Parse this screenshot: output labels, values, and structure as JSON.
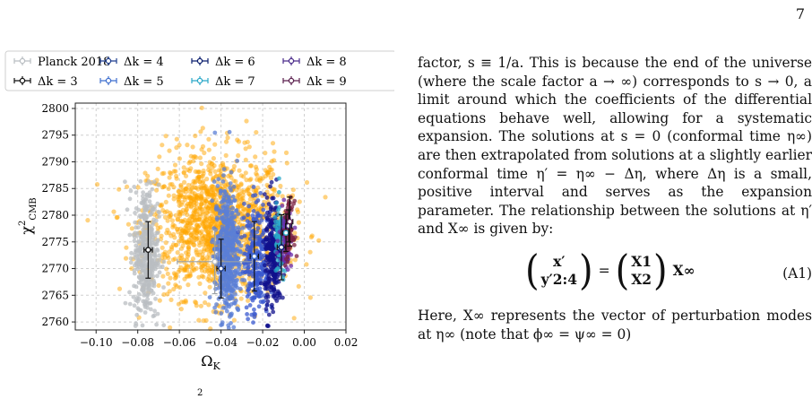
{
  "page_number": "7",
  "figure": {
    "legend": [
      {
        "label": "Planck 2018",
        "color": "#b9bec2"
      },
      {
        "label": "Δk = 3",
        "color": "#111111"
      },
      {
        "label": "Δk = 4",
        "color": "#1f3f8f"
      },
      {
        "label": "Δk = 5",
        "color": "#3f6fcf"
      },
      {
        "label": "Δk = 6",
        "color": "#0b1e6e"
      },
      {
        "label": "Δk = 7",
        "color": "#2aa8c8"
      },
      {
        "label": "Δk = 8",
        "color": "#4a2a8a"
      },
      {
        "label": "Δk = 9",
        "color": "#5a1f4e"
      }
    ],
    "xlabel": "Ω_K",
    "ylabel": "χ²_CMB",
    "xticks": [
      "−0.10",
      "−0.08",
      "−0.06",
      "−0.04",
      "−0.02",
      "0.00",
      "0.02"
    ],
    "yticks": [
      "2760",
      "2765",
      "2770",
      "2775",
      "2780",
      "2785",
      "2790",
      "2795",
      "2800"
    ],
    "caption_fragment": "2"
  },
  "chart_data": {
    "type": "scatter",
    "xlabel": "Ω_K",
    "ylabel": "χ²_CMB",
    "xlim": [
      -0.11,
      0.02
    ],
    "ylim": [
      2758.5,
      2801
    ],
    "grid": true,
    "legend_position": "top (above plot, two rows)",
    "series": [
      {
        "name": "Planck 2018",
        "color": "#ffa500",
        "x_center": -0.042,
        "x_spread": 0.03,
        "y_center": 2778,
        "y_spread": 9
      },
      {
        "name": "Δk = 3",
        "color": "#b9bec2",
        "x_center": -0.076,
        "x_spread": 0.003,
        "y_center": 2773,
        "y_spread": 7
      },
      {
        "name": "Δk = 4",
        "color": "#5b7fd6",
        "x_center": -0.037,
        "x_spread": 0.003,
        "y_center": 2773,
        "y_spread": 7
      },
      {
        "name": "Δk = 5",
        "color": "#3a5ad0",
        "x_center": -0.023,
        "x_spread": 0.003,
        "y_center": 2772,
        "y_spread": 6
      },
      {
        "name": "Δk = 6",
        "color": "#10108c",
        "x_center": -0.015,
        "x_spread": 0.002,
        "y_center": 2772,
        "y_spread": 6
      },
      {
        "name": "Δk = 7",
        "color": "#2aa8c8",
        "x_center": -0.0115,
        "x_spread": 0.0015,
        "y_center": 2775,
        "y_spread": 4
      },
      {
        "name": "Δk = 8",
        "color": "#6a2aa8",
        "x_center": -0.009,
        "x_spread": 0.0015,
        "y_center": 2776,
        "y_spread": 3
      },
      {
        "name": "Δk = 9",
        "color": "#7a2040",
        "x_center": -0.0075,
        "x_spread": 0.0012,
        "y_center": 2777,
        "y_spread": 3
      }
    ],
    "error_points": [
      {
        "name": "Planck 2018",
        "x": -0.043,
        "y": 2771.3,
        "xerr": 0.018,
        "yerr": 6
      },
      {
        "name": "Δk = 3",
        "x": -0.075,
        "y": 2773.5,
        "xerr": 0.002,
        "yerr": 5.3
      },
      {
        "name": "Δk = 4",
        "x": -0.04,
        "y": 2770,
        "xerr": 0.002,
        "yerr": 5.5
      },
      {
        "name": "Δk = 5",
        "x": -0.024,
        "y": 2772.3,
        "xerr": 0.002,
        "yerr": 6.5
      },
      {
        "name": "Δk = 6",
        "x": -0.011,
        "y": 2774,
        "xerr": 0.002,
        "yerr": 6.1
      },
      {
        "name": "Δk = 7",
        "x": -0.0088,
        "y": 2776.7,
        "xerr": 0.0015,
        "yerr": 3.5
      },
      {
        "name": "Δk = 8",
        "x": -0.0075,
        "y": 2778,
        "xerr": 0.0015,
        "yerr": 3
      },
      {
        "name": "Δk = 9",
        "x": -0.007,
        "y": 2778.8,
        "xerr": 0.0015,
        "yerr": 4.6
      }
    ]
  },
  "text": {
    "para1": "factor, s ≡ 1/a. This is because the end of the universe (where the scale factor a → ∞) corresponds to s → 0, a limit around which the coefficients of the differential equations behave well, allowing for a systematic expansion. The solutions at s = 0 (conformal time η∞) are then extrapolated from solutions at a slightly earlier conformal time η′ = η∞ − Δη, where Δη is a small, positive interval and serves as the expansion parameter. The relationship between the solutions at η′ and X∞ is given by:",
    "equation": {
      "lhs_top": "x′",
      "lhs_bottom": "y′2:4",
      "rhs_top": "X1",
      "rhs_bottom": "X2",
      "tail": "X∞",
      "label": "(A1)"
    },
    "para2": "Here, X∞ represents the vector of perturbation modes at η∞ (note that ϕ∞ = ψ∞ = 0)"
  }
}
